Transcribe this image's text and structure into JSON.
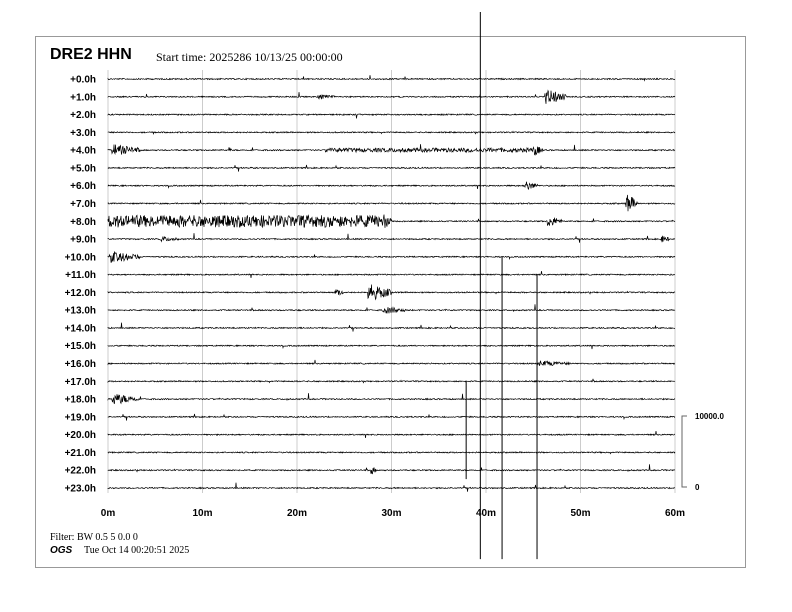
{
  "header": {
    "station": "DRE2 HHN",
    "start_time": "Start time: 2025286 10/13/25 00:00:00"
  },
  "footer": {
    "filter": "Filter: BW 0.5 5 0.0 0",
    "org": "OGS",
    "plotted": "Tue Oct 14 00:20:51 2025"
  },
  "chart_data": {
    "type": "line",
    "title": "DRE2 HHN",
    "row_labels": [
      "+0.0h",
      "+1.0h",
      "+2.0h",
      "+3.0h",
      "+4.0h",
      "+5.0h",
      "+6.0h",
      "+7.0h",
      "+8.0h",
      "+9.0h",
      "+10.0h",
      "+11.0h",
      "+12.0h",
      "+13.0h",
      "+14.0h",
      "+15.0h",
      "+16.0h",
      "+17.0h",
      "+18.0h",
      "+19.0h",
      "+20.0h",
      "+21.0h",
      "+22.0h",
      "+23.0h"
    ],
    "x_ticks": [
      "0m",
      "10m",
      "20m",
      "30m",
      "40m",
      "50m",
      "60m"
    ],
    "xlim": [
      0,
      60
    ],
    "grid": true,
    "scale_bar": {
      "top": "10000.0",
      "bottom": "0"
    },
    "trace_color": "#000000",
    "grid_color": "#cccccc",
    "events": [
      {
        "hour": 1,
        "start": 22.2,
        "end": 24.2,
        "amp": 3
      },
      {
        "hour": 1,
        "start": 46.2,
        "end": 48.5,
        "amp": 8
      },
      {
        "hour": 3,
        "start": 4.8,
        "end": 4.9,
        "amp": 2
      },
      {
        "hour": 4,
        "start": 0.4,
        "end": 3.4,
        "amp": 6
      },
      {
        "hour": 4,
        "start": 12.8,
        "end": 13.1,
        "amp": 3
      },
      {
        "hour": 4,
        "start": 23,
        "end": 45,
        "amp": 2
      },
      {
        "hour": 4,
        "start": 45,
        "end": 46,
        "amp": 6
      },
      {
        "hour": 6,
        "start": 44,
        "end": 45.5,
        "amp": 5
      },
      {
        "hour": 7,
        "start": 54.8,
        "end": 56,
        "amp": 10
      },
      {
        "hour": 8,
        "start": 0,
        "end": 29,
        "amp": 6
      },
      {
        "hour": 8,
        "start": 29,
        "end": 30,
        "amp": 9
      },
      {
        "hour": 8,
        "start": 46.5,
        "end": 48,
        "amp": 6
      },
      {
        "hour": 9,
        "start": 5.5,
        "end": 7.5,
        "amp": 3
      },
      {
        "hour": 9,
        "start": 58.5,
        "end": 59.5,
        "amp": 4
      },
      {
        "hour": 10,
        "start": 0.3,
        "end": 3.4,
        "amp": 6
      },
      {
        "hour": 12,
        "start": 24,
        "end": 25,
        "amp": 4
      },
      {
        "hour": 12,
        "start": 27.5,
        "end": 30,
        "amp": 9
      },
      {
        "hour": 13,
        "start": 29,
        "end": 31.5,
        "amp": 4
      },
      {
        "hour": 16,
        "start": 45.5,
        "end": 49,
        "amp": 3
      },
      {
        "hour": 18,
        "start": 0.4,
        "end": 3.2,
        "amp": 6
      },
      {
        "hour": 22,
        "start": 27.8,
        "end": 28.4,
        "amp": 5
      }
    ],
    "spikes": [
      {
        "minute": 39.4,
        "from_hour": -3.8,
        "to_hour": 27
      },
      {
        "minute": 41.7,
        "from_hour": 10,
        "to_hour": 27
      },
      {
        "minute": 45.4,
        "from_hour": 11,
        "to_hour": 27
      },
      {
        "minute": 37.9,
        "from_hour": 17,
        "to_hour": 22.5
      }
    ]
  }
}
